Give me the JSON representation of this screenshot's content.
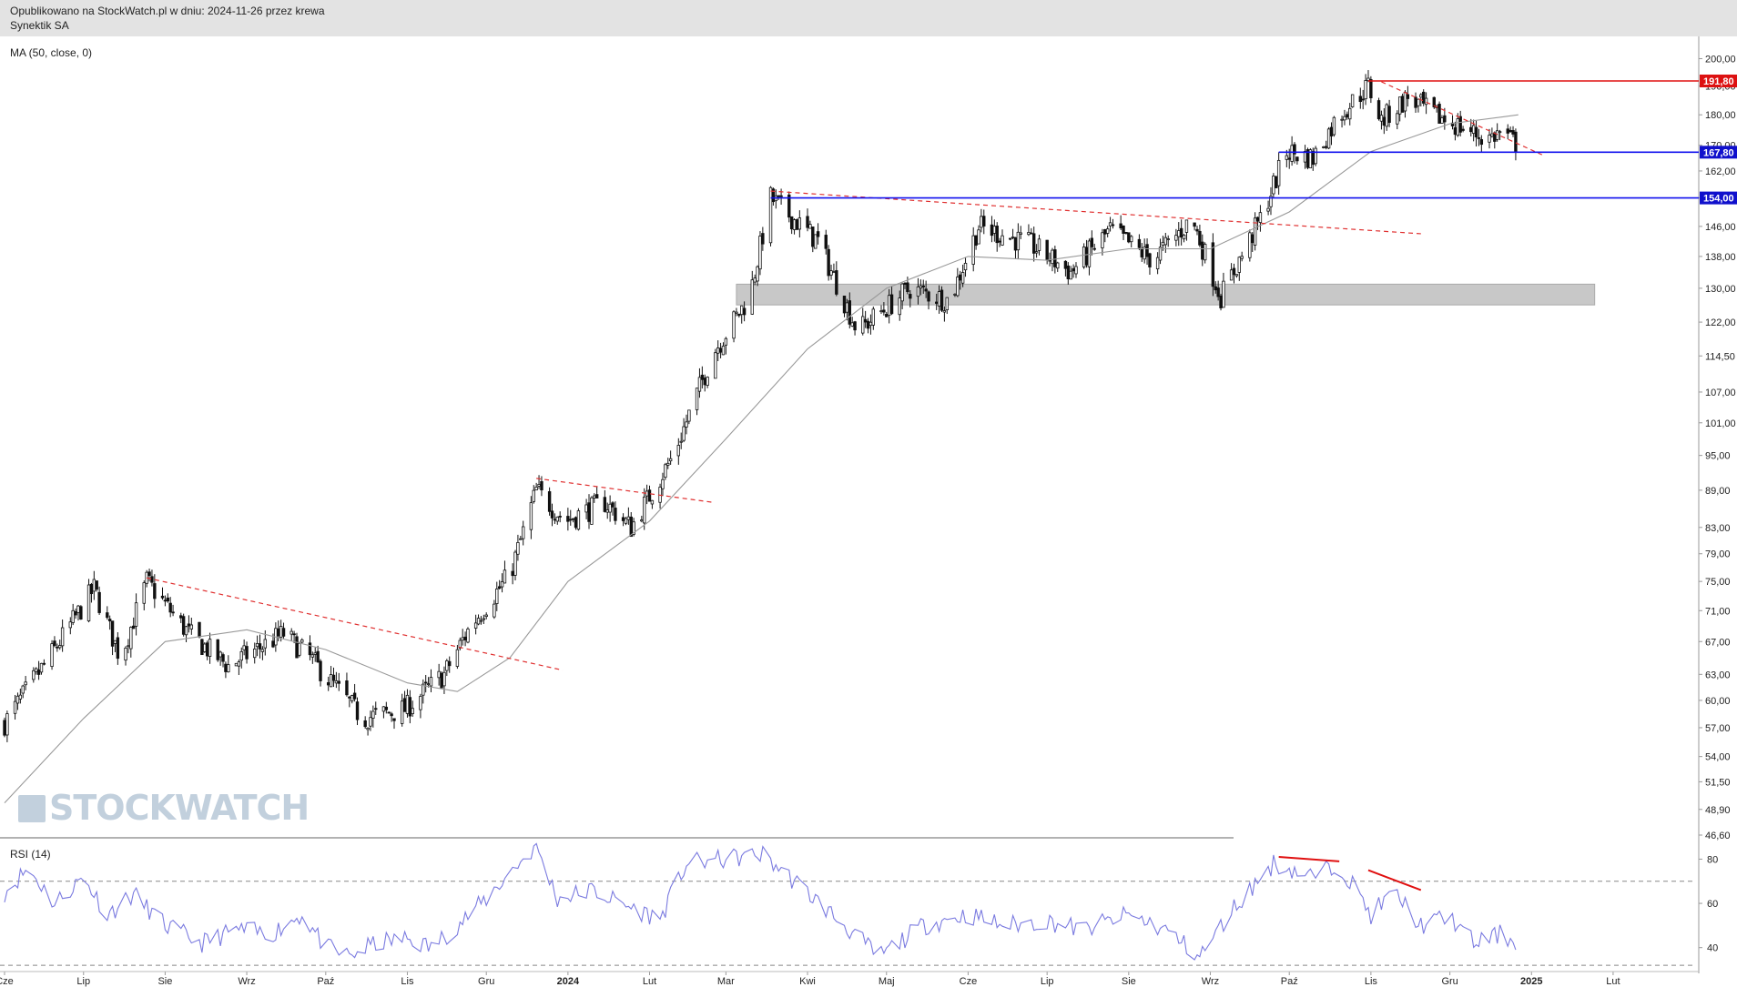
{
  "header": {
    "published": "Opublikowano na StockWatch.pl w dniu: 2024-11-26 przez krewa",
    "instrument": "Synektik SA"
  },
  "watermark": "STOCKWATCH",
  "indicators": {
    "ma_label": "MA (50, close, 0)",
    "rsi_label": "RSI (14)"
  },
  "colors": {
    "candle": "#111111",
    "ma_line": "#999999",
    "trend_dashed": "#e03030",
    "support_line": "#1010ee",
    "resistance_line": "#e01010",
    "zone": "#c8c8c8",
    "rsi_line": "#7b7be0",
    "price_label_red": "#dd1111",
    "price_label_blue": "#1010cc"
  },
  "chart_data": [
    {
      "type": "candlestick",
      "y_scale": "log",
      "ylim": [
        46.6,
        205
      ],
      "y_ticks": [
        "200,00",
        "190,00",
        "180,00",
        "170,00",
        "162,00",
        "154,00",
        "146,00",
        "138,00",
        "130,00",
        "122,00",
        "114,50",
        "107,00",
        "101,00",
        "95,00",
        "89,00",
        "83,00",
        "79,00",
        "75,00",
        "71,00",
        "67,00",
        "63,00",
        "60,00",
        "57,00",
        "54,00",
        "51,50",
        "48,90",
        "46,60"
      ],
      "x_ticks": [
        "Cze",
        "Lip",
        "Sie",
        "Wrz",
        "Paź",
        "Lis",
        "Gru",
        "2024",
        "Lut",
        "Mar",
        "Kwi",
        "Maj",
        "Cze",
        "Lip",
        "Sie",
        "Wrz",
        "Paź",
        "Lis",
        "Gru",
        "2025",
        "Lut"
      ],
      "close_path": [
        {
          "x": "2023-06-01",
          "y": 57.5
        },
        {
          "x": "2023-06-20",
          "y": 66
        },
        {
          "x": "2023-07-05",
          "y": 74
        },
        {
          "x": "2023-07-15",
          "y": 65
        },
        {
          "x": "2023-07-25",
          "y": 75
        },
        {
          "x": "2023-08-10",
          "y": 68
        },
        {
          "x": "2023-08-25",
          "y": 64
        },
        {
          "x": "2023-09-15",
          "y": 68
        },
        {
          "x": "2023-09-25",
          "y": 65
        },
        {
          "x": "2023-10-15",
          "y": 58
        },
        {
          "x": "2023-10-31",
          "y": 59
        },
        {
          "x": "2023-11-15",
          "y": 63
        },
        {
          "x": "2023-11-25",
          "y": 69
        },
        {
          "x": "2023-12-10",
          "y": 76
        },
        {
          "x": "2023-12-20",
          "y": 89
        },
        {
          "x": "2023-12-31",
          "y": 84
        },
        {
          "x": "2024-01-15",
          "y": 87
        },
        {
          "x": "2024-01-25",
          "y": 83
        },
        {
          "x": "2024-02-10",
          "y": 95
        },
        {
          "x": "2024-02-25",
          "y": 115
        },
        {
          "x": "2024-03-10",
          "y": 128
        },
        {
          "x": "2024-03-18",
          "y": 154
        },
        {
          "x": "2024-04-05",
          "y": 142
        },
        {
          "x": "2024-04-20",
          "y": 120
        },
        {
          "x": "2024-05-10",
          "y": 130
        },
        {
          "x": "2024-05-25",
          "y": 127
        },
        {
          "x": "2024-06-05",
          "y": 146
        },
        {
          "x": "2024-06-25",
          "y": 141
        },
        {
          "x": "2024-07-10",
          "y": 134
        },
        {
          "x": "2024-07-25",
          "y": 145
        },
        {
          "x": "2024-08-10",
          "y": 137
        },
        {
          "x": "2024-08-25",
          "y": 148
        },
        {
          "x": "2024-09-05",
          "y": 128
        },
        {
          "x": "2024-09-20",
          "y": 148
        },
        {
          "x": "2024-09-30",
          "y": 168
        },
        {
          "x": "2024-10-10",
          "y": 166
        },
        {
          "x": "2024-10-20",
          "y": 180
        },
        {
          "x": "2024-10-31",
          "y": 190
        },
        {
          "x": "2024-11-05",
          "y": 178
        },
        {
          "x": "2024-11-15",
          "y": 186
        },
        {
          "x": "2024-11-25",
          "y": 180
        },
        {
          "x": "2024-12-05",
          "y": 176
        },
        {
          "x": "2024-12-15",
          "y": 172
        },
        {
          "x": "2024-12-20",
          "y": 174
        },
        {
          "x": "2024-12-27",
          "y": 170
        }
      ],
      "ma": {
        "label": "MA (50, close, 0)",
        "points": [
          {
            "x": "2023-06-01",
            "y": 49.5
          },
          {
            "x": "2023-07-01",
            "y": 58
          },
          {
            "x": "2023-08-01",
            "y": 67
          },
          {
            "x": "2023-09-01",
            "y": 68.5
          },
          {
            "x": "2023-10-01",
            "y": 66
          },
          {
            "x": "2023-11-01",
            "y": 62
          },
          {
            "x": "2023-11-20",
            "y": 61
          },
          {
            "x": "2023-12-10",
            "y": 65
          },
          {
            "x": "2024-01-01",
            "y": 75
          },
          {
            "x": "2024-02-01",
            "y": 84
          },
          {
            "x": "2024-03-01",
            "y": 98
          },
          {
            "x": "2024-04-01",
            "y": 116
          },
          {
            "x": "2024-05-01",
            "y": 130
          },
          {
            "x": "2024-06-01",
            "y": 138
          },
          {
            "x": "2024-07-01",
            "y": 137
          },
          {
            "x": "2024-08-01",
            "y": 140
          },
          {
            "x": "2024-09-01",
            "y": 140
          },
          {
            "x": "2024-10-01",
            "y": 150
          },
          {
            "x": "2024-11-01",
            "y": 168
          },
          {
            "x": "2024-12-01",
            "y": 177
          },
          {
            "x": "2024-12-27",
            "y": 180
          }
        ]
      },
      "annotations": {
        "horizontal_lines": [
          {
            "label": "191,80",
            "value": 191.8,
            "color": "red",
            "from": "2024-10-31",
            "to": "2025-02-28"
          },
          {
            "label": "167,80",
            "value": 167.8,
            "color": "blue",
            "from": "2024-09-27",
            "to": "2025-02-28"
          },
          {
            "label": "154,00",
            "value": 154.0,
            "color": "blue",
            "from": "2024-03-18",
            "to": "2025-02-28"
          }
        ],
        "dashed_trendlines": [
          {
            "from": {
              "x": "2023-07-25",
              "y": 75.5
            },
            "to": {
              "x": "2023-12-30",
              "y": 63.5
            }
          },
          {
            "from": {
              "x": "2023-12-20",
              "y": 91
            },
            "to": {
              "x": "2024-02-25",
              "y": 87
            }
          },
          {
            "from": {
              "x": "2024-03-18",
              "y": 156
            },
            "to": {
              "x": "2024-11-20",
              "y": 144
            }
          },
          {
            "from": {
              "x": "2024-11-05",
              "y": 191.5
            },
            "to": {
              "x": "2025-01-05",
              "y": 167
            }
          }
        ],
        "zone": {
          "from": "2024-03-05",
          "to": "2025-01-25",
          "y_low": 126,
          "y_high": 131
        }
      }
    },
    {
      "type": "line",
      "name": "RSI (14)",
      "ylim": [
        30,
        88
      ],
      "y_ticks": [
        "80",
        "60",
        "40"
      ],
      "reference_lines": [
        70,
        32
      ],
      "points": [
        {
          "x": "2023-06-01",
          "y": 65
        },
        {
          "x": "2023-06-10",
          "y": 76
        },
        {
          "x": "2023-06-20",
          "y": 60
        },
        {
          "x": "2023-07-01",
          "y": 72
        },
        {
          "x": "2023-07-10",
          "y": 55
        },
        {
          "x": "2023-07-20",
          "y": 64
        },
        {
          "x": "2023-08-01",
          "y": 50
        },
        {
          "x": "2023-08-15",
          "y": 42
        },
        {
          "x": "2023-08-28",
          "y": 48
        },
        {
          "x": "2023-09-10",
          "y": 46
        },
        {
          "x": "2023-09-22",
          "y": 55
        },
        {
          "x": "2023-10-01",
          "y": 40
        },
        {
          "x": "2023-10-10",
          "y": 36
        },
        {
          "x": "2023-10-20",
          "y": 42
        },
        {
          "x": "2023-11-01",
          "y": 44
        },
        {
          "x": "2023-11-10",
          "y": 40
        },
        {
          "x": "2023-11-20",
          "y": 50
        },
        {
          "x": "2023-12-01",
          "y": 62
        },
        {
          "x": "2023-12-10",
          "y": 74
        },
        {
          "x": "2023-12-20",
          "y": 86
        },
        {
          "x": "2023-12-28",
          "y": 62
        },
        {
          "x": "2024-01-10",
          "y": 66
        },
        {
          "x": "2024-01-25",
          "y": 58
        },
        {
          "x": "2024-02-05",
          "y": 53
        },
        {
          "x": "2024-02-15",
          "y": 78
        },
        {
          "x": "2024-03-01",
          "y": 80
        },
        {
          "x": "2024-03-15",
          "y": 82
        },
        {
          "x": "2024-04-01",
          "y": 65
        },
        {
          "x": "2024-04-15",
          "y": 50
        },
        {
          "x": "2024-04-28",
          "y": 36
        },
        {
          "x": "2024-05-15",
          "y": 50
        },
        {
          "x": "2024-06-01",
          "y": 55
        },
        {
          "x": "2024-06-15",
          "y": 50
        },
        {
          "x": "2024-07-01",
          "y": 52
        },
        {
          "x": "2024-07-15",
          "y": 48
        },
        {
          "x": "2024-08-01",
          "y": 55
        },
        {
          "x": "2024-08-15",
          "y": 48
        },
        {
          "x": "2024-08-28",
          "y": 36
        },
        {
          "x": "2024-09-10",
          "y": 58
        },
        {
          "x": "2024-09-25",
          "y": 78
        },
        {
          "x": "2024-10-10",
          "y": 72
        },
        {
          "x": "2024-10-20",
          "y": 78
        },
        {
          "x": "2024-11-01",
          "y": 55
        },
        {
          "x": "2024-11-10",
          "y": 65
        },
        {
          "x": "2024-11-20",
          "y": 50
        },
        {
          "x": "2024-12-01",
          "y": 54
        },
        {
          "x": "2024-12-10",
          "y": 42
        },
        {
          "x": "2024-12-20",
          "y": 46
        },
        {
          "x": "2024-12-27",
          "y": 42
        }
      ],
      "annotations": {
        "divergence_lines": [
          {
            "from": {
              "x": "2024-09-27",
              "y": 81
            },
            "to": {
              "x": "2024-10-20",
              "y": 79
            }
          },
          {
            "from": {
              "x": "2024-10-31",
              "y": 75
            },
            "to": {
              "x": "2024-11-20",
              "y": 66
            }
          }
        ]
      }
    }
  ]
}
